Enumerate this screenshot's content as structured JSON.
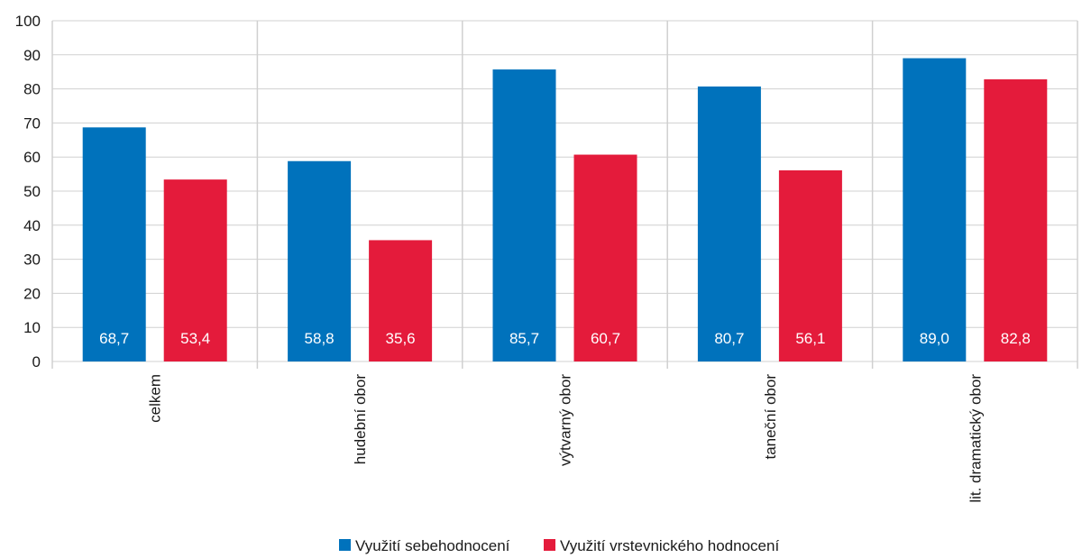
{
  "chart_data": {
    "type": "bar",
    "categories": [
      "celkem",
      "hudební obor",
      "výtvarný obor",
      "taneční obor",
      "lit. dramatický obor"
    ],
    "series": [
      {
        "name": "Využití sebehodnocení",
        "color": "#0072BC",
        "values": [
          68.7,
          58.8,
          85.7,
          80.7,
          89.0
        ],
        "labels": [
          "68,7",
          "58,8",
          "85,7",
          "80,7",
          "89,0"
        ]
      },
      {
        "name": "Využití vrstevnického hodnocení",
        "color": "#E41B3B",
        "values": [
          53.4,
          35.6,
          60.7,
          56.1,
          82.8
        ],
        "labels": [
          "53,4",
          "35,6",
          "60,7",
          "56,1",
          "82,8"
        ]
      }
    ],
    "ylim": [
      0,
      100
    ],
    "yticks": [
      0,
      10,
      20,
      30,
      40,
      50,
      60,
      70,
      80,
      90,
      100
    ],
    "grid": true,
    "legend": "bottom",
    "title": "",
    "xlabel": "",
    "ylabel": ""
  }
}
